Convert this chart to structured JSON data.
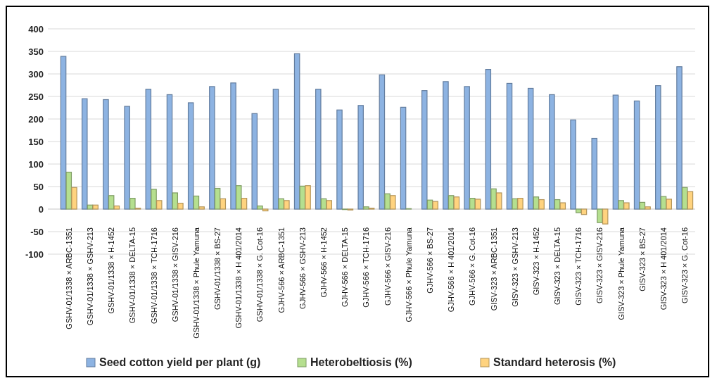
{
  "chart_data": {
    "type": "bar",
    "categories": [
      "GSHV-01/1338 × ARBC-1351",
      "GSHV-01/1338 × GSHV-213",
      "GSHV-01/1338 × H-1452",
      "GSHV-01/1338 × DELTA-15",
      "GSHV-01/1338 × TCH-1716",
      "GSHV-01/1338 × GISV-216",
      "GSHV-01/1338 × Phule Yamuna",
      "GSHV-01/1338 × BS-27",
      "GSHV-01/1338 × H 401/2014",
      "GSHV-01/1338 × G. Cot-16",
      "GJHV-566 × ARBC-1351",
      "GJHV-566 × GSHV-213",
      "GJHV-566 × H-1452",
      "GJHV-566 × DELTA-15",
      "GJHV-566 × TCH-1716",
      "GJHV-566 × GISV-216",
      "GJHV-566 × Phule Yamuna",
      "GJHV-566 × BS-27",
      "GJHV-566 × H 401/2014",
      "GJHV-566 × G. Cot-16",
      "GISV-323 × ARBC-1351",
      "GISV-323 × GSHV-213",
      "GISV-323 × H-1452",
      "GISV-323 × DELTA-15",
      "GISV-323 × TCH-1716",
      "GISV-323 × GISV-216",
      "GISV-323 × Phule Yamuna",
      "GISV-323 × BS-27",
      "GISV-323 × H 401/2014",
      "GISV-323 × G. Cot-16"
    ],
    "series": [
      {
        "name": "Seed cotton yield per plant (g)",
        "color": "#8db3e2",
        "values": [
          339,
          245,
          243,
          228,
          266,
          254,
          236,
          272,
          280,
          212,
          266,
          345,
          266,
          220,
          230,
          298,
          226,
          263,
          283,
          272,
          310,
          279,
          268,
          254,
          198,
          157,
          253,
          240,
          274,
          316
        ]
      },
      {
        "name": "Heterobeltiosis (%)",
        "color": "#b5df8f",
        "values": [
          82,
          9,
          30,
          24,
          44,
          36,
          29,
          46,
          52,
          7,
          23,
          51,
          23,
          -1,
          5,
          34,
          1,
          20,
          30,
          24,
          45,
          23,
          27,
          21,
          -8,
          -30,
          19,
          15,
          28,
          48
        ]
      },
      {
        "name": "Standard heterosis (%)",
        "color": "#ffd37f",
        "values": [
          48,
          9,
          7,
          2,
          19,
          13,
          5,
          23,
          24,
          -4,
          19,
          52,
          19,
          -2,
          2,
          30,
          0,
          17,
          27,
          22,
          36,
          24,
          21,
          14,
          -12,
          -33,
          14,
          5,
          22,
          39
        ]
      }
    ],
    "ylim": [
      -100,
      400
    ],
    "yticks": [
      -100,
      -50,
      0,
      50,
      100,
      150,
      200,
      250,
      300,
      350,
      400
    ],
    "grid": "y",
    "legend": "bottom"
  }
}
